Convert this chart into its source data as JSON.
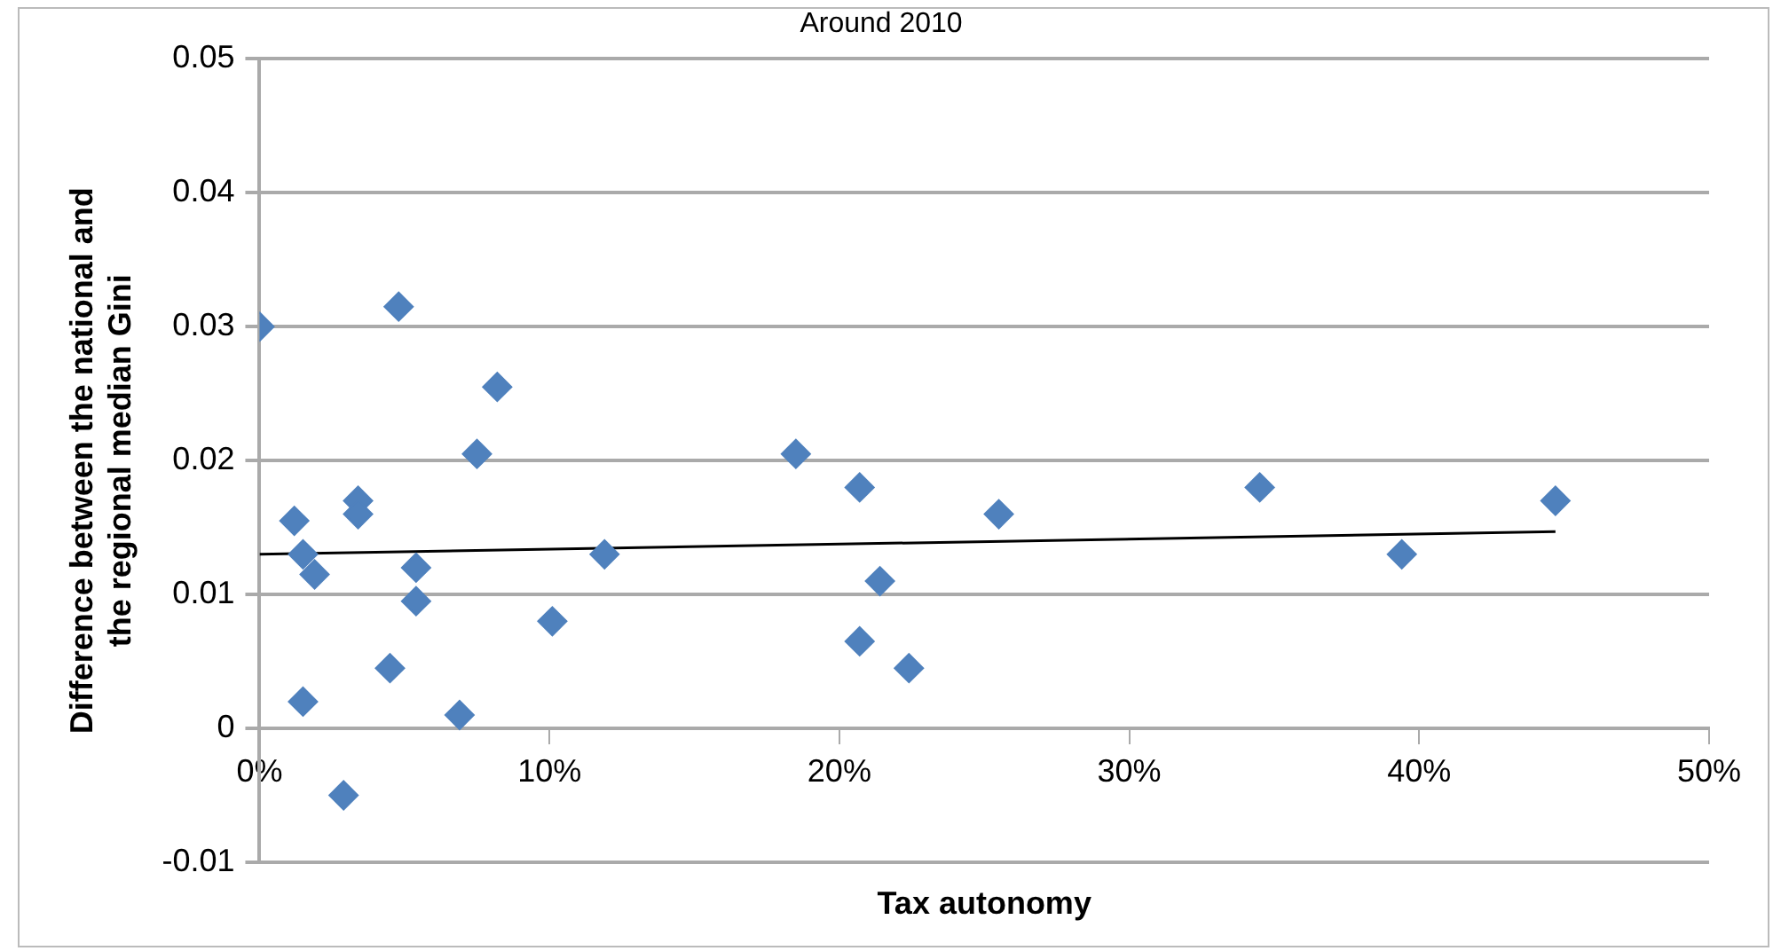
{
  "chart_data": {
    "type": "scatter",
    "title": "Around 2010",
    "xlabel": "Tax autonomy",
    "ylabel": "Difference between the national and\nthe regional median Gini",
    "xlim": [
      0,
      0.5
    ],
    "xticks": [
      {
        "value": 0,
        "label": "0%"
      },
      {
        "value": 0.1,
        "label": "10%"
      },
      {
        "value": 0.2,
        "label": "20%"
      },
      {
        "value": 0.3,
        "label": "30%"
      },
      {
        "value": 0.4,
        "label": "40%"
      },
      {
        "value": 0.5,
        "label": "50%"
      }
    ],
    "ylim": [
      -0.01,
      0.05
    ],
    "yticks": [
      -0.01,
      0,
      0.01,
      0.02,
      0.03,
      0.04,
      0.05
    ],
    "grid": "y",
    "legend": false,
    "marker": "diamond",
    "series": [
      {
        "color": "#4f81bd",
        "x": [
          0,
          0.048,
          0.082,
          0.075,
          0.034,
          0.034,
          0.012,
          0.015,
          0.019,
          0.054,
          0.054,
          0.119,
          0.101,
          0.045,
          0.015,
          0.069,
          0.029,
          0.185,
          0.207,
          0.255,
          0.214,
          0.207,
          0.224,
          0.345,
          0.394,
          0.447
        ],
        "values": [
          0.03,
          0.0315,
          0.0255,
          0.0205,
          0.017,
          0.016,
          0.0155,
          0.013,
          0.0115,
          0.012,
          0.0095,
          0.013,
          0.008,
          0.0045,
          0.002,
          0.001,
          -0.005,
          0.0205,
          0.018,
          0.016,
          0.011,
          0.0065,
          0.0045,
          0.018,
          0.013,
          0.017
        ]
      },
      {
        "type": "line",
        "color": "#000000",
        "marker": "none",
        "line_style": "solid",
        "x": [
          0,
          0.447
        ],
        "values": [
          0.013,
          0.0147
        ]
      }
    ]
  }
}
